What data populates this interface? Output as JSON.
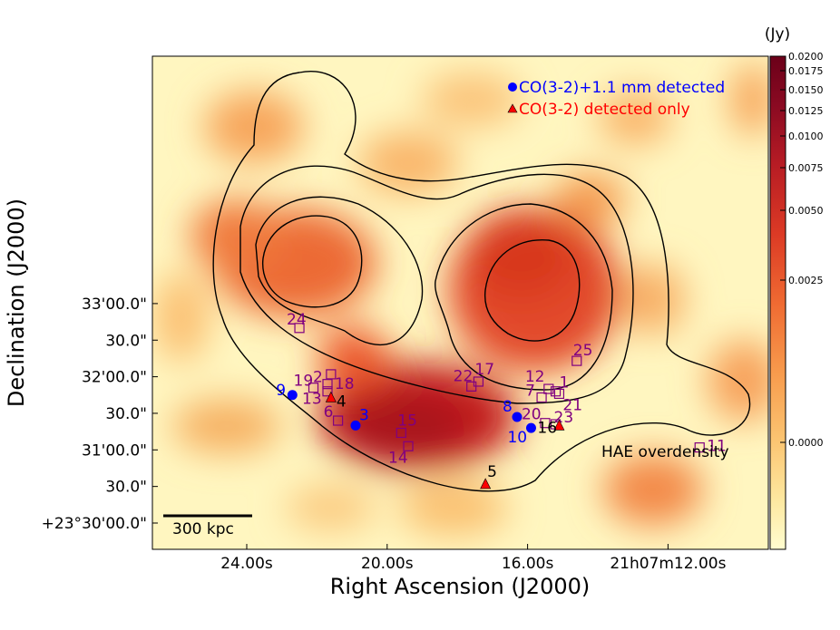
{
  "chart_data": {
    "type": "heatmap",
    "title": "",
    "xlabel": "Right Ascension (J2000)",
    "ylabel": "Declination (J2000)",
    "x_ticks": [
      "24.00s",
      "20.00s",
      "16.00s",
      "21h07m12.00s"
    ],
    "y_ticks": [
      "+23°30'00.0\"",
      "30.0\"",
      "31'00.0\"",
      "30.0\"",
      "32'00.0\"",
      "30.0\"",
      "33'00.0\""
    ],
    "colorbar": {
      "unit": "(Jy)",
      "ticks": [
        "0.0200",
        "0.0175",
        "0.0150",
        "0.0125",
        "0.0100",
        "0.0075",
        "0.0050",
        "0.0025",
        "0.0000"
      ],
      "colors": [
        "#fffdd0",
        "#fde8a0",
        "#fbc572",
        "#f79a4c",
        "#ef6a32",
        "#dc3a25",
        "#b71c24",
        "#8a0a22",
        "#6b0019"
      ]
    },
    "legend": [
      {
        "marker": "circle",
        "color": "#0000ff",
        "label": "CO(3-2)+1.1 mm detected"
      },
      {
        "marker": "triangle",
        "color": "#ff0000",
        "label": "CO(3-2) detected only"
      }
    ],
    "contour_label": "HAE overdensity",
    "scalebar_label": "300 kpc",
    "sources_mm": [
      {
        "id": "9",
        "ra_s": 22.7,
        "dec_s": 45
      },
      {
        "id": "3",
        "ra_s": 20.9,
        "dec_s": 20
      },
      {
        "id": "8",
        "ra_s": 16.3,
        "dec_s": 27
      },
      {
        "id": "10",
        "ra_s": 15.9,
        "dec_s": 18
      }
    ],
    "sources_co": [
      {
        "id": "4",
        "ra_s": 21.6,
        "dec_s": 43
      },
      {
        "id": "16",
        "ra_s": 15.1,
        "dec_s": 20
      },
      {
        "id": "5",
        "ra_s": 17.2,
        "dec_s": -28
      }
    ],
    "sources_other": [
      {
        "id": "24",
        "ra_s": 22.5,
        "dec_s": 100
      },
      {
        "id": "18",
        "ra_s": 21.6,
        "dec_s": 62
      },
      {
        "id": "2",
        "ra_s": 21.7,
        "dec_s": 54
      },
      {
        "id": "19",
        "ra_s": 22.1,
        "dec_s": 51
      },
      {
        "id": "13",
        "ra_s": 21.7,
        "dec_s": 48
      },
      {
        "id": "6",
        "ra_s": 21.4,
        "dec_s": 24
      },
      {
        "id": "15",
        "ra_s": 19.6,
        "dec_s": 14
      },
      {
        "id": "14",
        "ra_s": 19.4,
        "dec_s": 3
      },
      {
        "id": "22",
        "ra_s": 17.6,
        "dec_s": 52
      },
      {
        "id": "17",
        "ra_s": 17.4,
        "dec_s": 56
      },
      {
        "id": "7",
        "ra_s": 15.6,
        "dec_s": 43
      },
      {
        "id": "12",
        "ra_s": 15.4,
        "dec_s": 50
      },
      {
        "id": "1",
        "ra_s": 15.2,
        "dec_s": 48
      },
      {
        "id": "21",
        "ra_s": 15.1,
        "dec_s": 46
      },
      {
        "id": "20",
        "ra_s": 15.5,
        "dec_s": 22
      },
      {
        "id": "23",
        "ra_s": 15.2,
        "dec_s": 21
      },
      {
        "id": "25",
        "ra_s": 14.6,
        "dec_s": 73
      },
      {
        "id": "11",
        "ra_s": 11.1,
        "dec_s": 2
      }
    ],
    "overdensity_contours": 4,
    "colors": {
      "mm": "#0000ff",
      "co": "#ff0000",
      "other": "#800080",
      "contour": "#000000"
    }
  }
}
